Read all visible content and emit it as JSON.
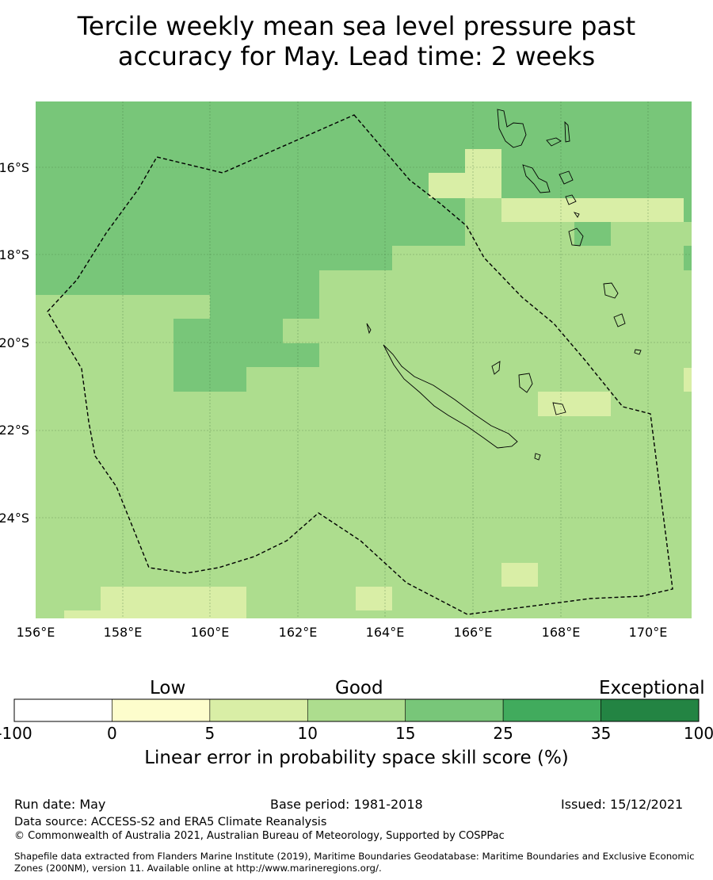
{
  "title": {
    "line1": "Tercile weekly mean sea level pressure past",
    "line2": "accuracy for May. Lead time: 2 weeks"
  },
  "map": {
    "lat_ticks": [
      "16°S",
      "18°S",
      "20°S",
      "22°S",
      "24°S"
    ],
    "lon_ticks": [
      "156°E",
      "158°E",
      "160°E",
      "162°E",
      "164°E",
      "166°E",
      "168°E",
      "170°E"
    ],
    "dominant_categories": [
      "10-15",
      "15-25"
    ],
    "colors": {
      "c0_5": "#fdfdcc",
      "c5_10": "#d9eea6",
      "c10_15": "#addd8e",
      "c15_25": "#78c679",
      "c25_35": "#41ab5d",
      "c35_100": "#238443"
    }
  },
  "colorbar": {
    "category_labels": [
      "Low",
      "Good",
      "Exceptional"
    ],
    "ticks": [
      "-100",
      "0",
      "5",
      "10",
      "15",
      "25",
      "35",
      "100"
    ],
    "colors": [
      "#ffffff",
      "#fdfdcc",
      "#d9eea6",
      "#addd8e",
      "#78c679",
      "#41ab5d",
      "#238443"
    ],
    "label": "Linear error in probability space skill score (%)"
  },
  "footer": {
    "run_date": "Run date: May",
    "base_period": "Base period: 1981-2018",
    "issued": "Issued: 15/12/2021",
    "data_source": "Data source: ACCESS-S2 and ERA5 Climate Reanalysis",
    "copyright": "© Commonwealth of Australia 2021, Australian Bureau of Meteorology, Supported by COSPPac",
    "shapefile_line1": "Shapefile data extracted from Flanders Marine Institute (2019), Maritime Boundaries Geodatabase: Maritime Boundaries and Exclusive Economic",
    "shapefile_line2": "Zones (200NM), version 11. Available online at http://www.marineregions.org/."
  }
}
